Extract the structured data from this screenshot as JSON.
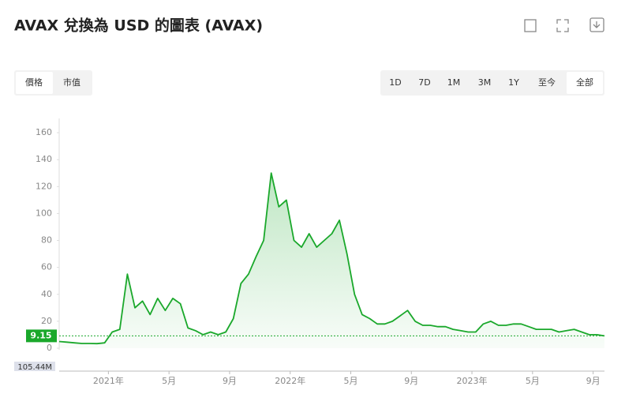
{
  "header": {
    "title": "AVAX 兌換為 USD 的圖表 (AVAX)",
    "tabs": [
      "價格",
      "市值"
    ],
    "ranges": [
      "1D",
      "7D",
      "1M",
      "3M",
      "1Y",
      "至今",
      "全部"
    ]
  },
  "chart_data": {
    "type": "area",
    "color": "#1aa82b",
    "values": [
      5,
      4.5,
      4,
      3.5,
      3.5,
      3.4,
      4,
      12,
      14,
      55,
      30,
      35,
      25,
      37,
      28,
      37,
      33,
      15,
      13,
      10,
      12,
      10,
      12,
      22,
      48,
      55,
      68,
      80,
      130,
      105,
      110,
      80,
      75,
      85,
      75,
      80,
      85,
      95,
      70,
      40,
      25,
      22,
      18,
      18,
      20,
      24,
      28,
      20,
      17,
      17,
      16,
      16,
      14,
      13,
      12,
      12,
      18,
      20,
      17,
      17,
      18,
      18,
      16,
      14,
      14,
      14,
      12,
      13,
      14,
      12,
      10,
      10,
      9.15
    ],
    "xlim": [
      0,
      72
    ],
    "xticks": [
      {
        "value": 6.5,
        "label": "2021年"
      },
      {
        "value": 14.5,
        "label": "5月"
      },
      {
        "value": 22.5,
        "label": "9月"
      },
      {
        "value": 30.5,
        "label": "2022年"
      },
      {
        "value": 38.5,
        "label": "5月"
      },
      {
        "value": 46.5,
        "label": "9月"
      },
      {
        "value": 54.5,
        "label": "2023年"
      },
      {
        "value": 62.5,
        "label": "5月"
      },
      {
        "value": 70.5,
        "label": "9月"
      }
    ],
    "ylim": [
      0,
      170
    ],
    "yticks": [
      0,
      20,
      40,
      60,
      80,
      100,
      120,
      140,
      160
    ],
    "current_price": 9.15,
    "volume_label": "105.44M"
  }
}
